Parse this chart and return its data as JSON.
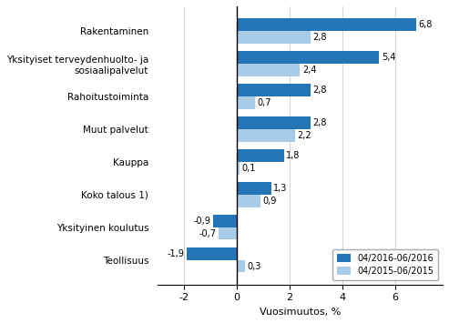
{
  "categories": [
    "Teollisuus",
    "Yksityinen koulutus",
    "Koko talous 1)",
    "Kauppa",
    "Muut palvelut",
    "Rahoitustoiminta",
    "Yksityiset terveydenhuolto- ja\nsosiaalipalvelut",
    "Rakentaminen"
  ],
  "series_2016": [
    -1.9,
    -0.9,
    1.3,
    1.8,
    2.8,
    2.8,
    5.4,
    6.8
  ],
  "series_2015": [
    0.3,
    -0.7,
    0.9,
    0.1,
    2.2,
    0.7,
    2.4,
    2.8
  ],
  "color_2016": "#2475B8",
  "color_2015": "#A8CCE8",
  "xlabel": "Vuosimuutos, %",
  "xlim": [
    -3.0,
    7.8
  ],
  "xticks": [
    -2,
    0,
    2,
    4,
    6
  ],
  "legend_2016": "04/2016-06/2016",
  "legend_2015": "04/2015-06/2015"
}
